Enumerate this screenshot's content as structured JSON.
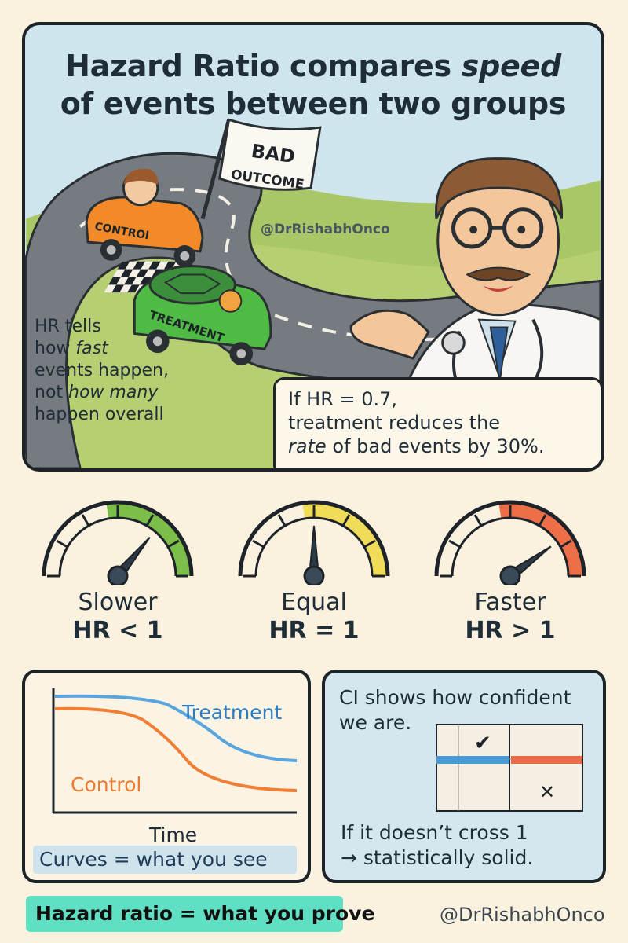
{
  "header": {
    "title_line1": "Hazard Ratio compares",
    "title_line1_em": "speed",
    "title_line2": "of events between two groups"
  },
  "scene": {
    "flag_text_1": "BAD",
    "flag_text_2": "OUTCOME",
    "control_car_label": "CONTROl",
    "treatment_car_label": "TREATMENT",
    "watermark": "@DrRishabhOnco",
    "hr_tells": {
      "line1": "HR tells",
      "line2_prefix": "how ",
      "line2_em": "fast",
      "line3": "events happen,",
      "line4_prefix": "not ",
      "line4_em": "how many",
      "line5": "happen overall"
    },
    "example": {
      "line1": "If HR = 0.7,",
      "line2": "treatment reduces the",
      "line3_em": "rate",
      "line3_rest": " of bad events by 30%."
    }
  },
  "gauges": [
    {
      "label": "Slower",
      "hr": "HR < 1",
      "color": "#7bbf4a",
      "level": 0.72
    },
    {
      "label": "Equal",
      "hr": "HR = 1",
      "color": "#f1dc5a",
      "level": 0.5
    },
    {
      "label": "Faster",
      "hr": "HR > 1",
      "color": "#ec6f47",
      "level": 0.8
    }
  ],
  "curves": {
    "treatment_label": "Treatment",
    "control_label": "Control",
    "x_label": "Time",
    "caption": "Curves = what you see",
    "treatment_color": "#5aa5dd",
    "control_color": "#ef7f35"
  },
  "ci": {
    "title_line1": "CI shows how confident",
    "title_line2": "we are.",
    "check_mark": "✔",
    "cross_mark": "✕",
    "foot_line1": "If it doesn’t cross 1",
    "foot_line2": "→ statistically solid.",
    "good_color": "#4a9ad6",
    "bad_color": "#ea6b48"
  },
  "footer": {
    "badge": "Hazard ratio = what you prove",
    "handle": "@DrRishabhOnco"
  }
}
